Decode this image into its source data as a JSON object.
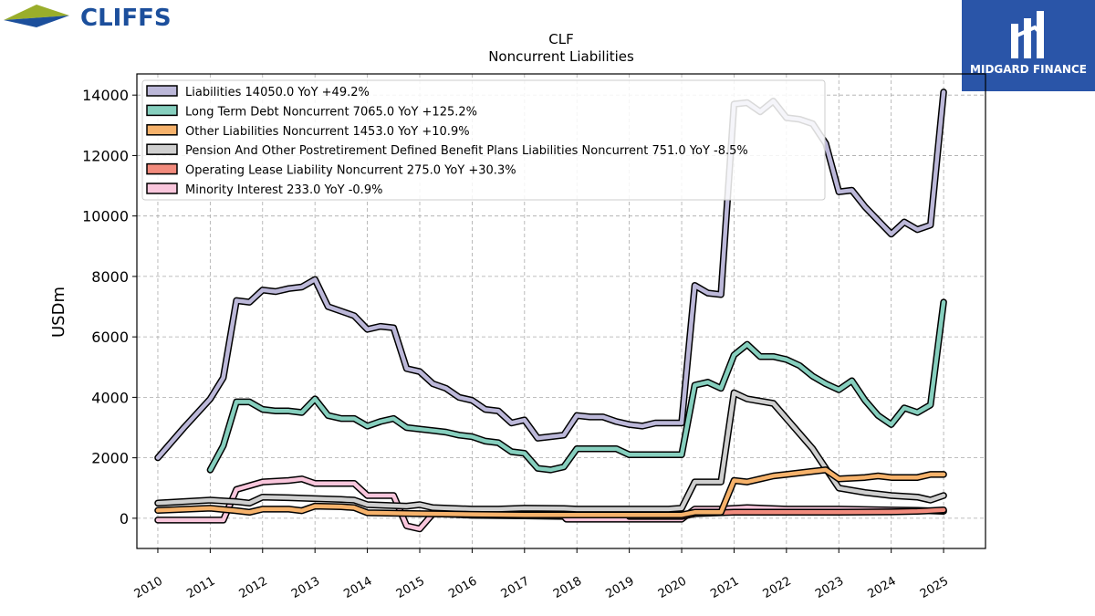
{
  "brand": {
    "left_logo_text": "CLIFFS",
    "right_logo_text": "MIDGARD FINANCE",
    "left_logo_color": "#1c4f9c",
    "right_logo_bg": "#2a55a8"
  },
  "chart_data": {
    "type": "line",
    "title": "CLF",
    "subtitle": "Noncurrent  Liabilities",
    "ylabel": "USDm",
    "xlabel": "",
    "xlim": [
      2009.6,
      2025.8
    ],
    "ylim": [
      -1000,
      14700
    ],
    "yticks": [
      0,
      2000,
      4000,
      6000,
      8000,
      10000,
      12000,
      14000
    ],
    "xticks": [
      "2010",
      "2011",
      "2012",
      "2013",
      "2014",
      "2015",
      "2016",
      "2017",
      "2018",
      "2019",
      "2020",
      "2021",
      "2022",
      "2023",
      "2024",
      "2025"
    ],
    "grid": true,
    "legend_position": "top-left",
    "series": [
      {
        "name": "Liabilities",
        "legend": "Liabilities  14050.0 YoY +49.2%",
        "color": "#bcb8d9",
        "points": [
          [
            2010.0,
            2000
          ],
          [
            2010.5,
            3000
          ],
          [
            2011.0,
            3950
          ],
          [
            2011.25,
            4650
          ],
          [
            2011.5,
            7200
          ],
          [
            2011.75,
            7150
          ],
          [
            2012.0,
            7550
          ],
          [
            2012.25,
            7500
          ],
          [
            2012.5,
            7600
          ],
          [
            2012.75,
            7650
          ],
          [
            2013.0,
            7900
          ],
          [
            2013.25,
            7000
          ],
          [
            2013.5,
            6850
          ],
          [
            2013.75,
            6700
          ],
          [
            2014.0,
            6250
          ],
          [
            2014.25,
            6350
          ],
          [
            2014.5,
            6300
          ],
          [
            2014.75,
            4950
          ],
          [
            2015.0,
            4850
          ],
          [
            2015.25,
            4450
          ],
          [
            2015.5,
            4300
          ],
          [
            2015.75,
            4000
          ],
          [
            2016.0,
            3900
          ],
          [
            2016.25,
            3600
          ],
          [
            2016.5,
            3550
          ],
          [
            2016.75,
            3150
          ],
          [
            2017.0,
            3250
          ],
          [
            2017.25,
            2650
          ],
          [
            2017.5,
            2700
          ],
          [
            2017.75,
            2750
          ],
          [
            2018.0,
            3400
          ],
          [
            2018.25,
            3350
          ],
          [
            2018.5,
            3350
          ],
          [
            2018.75,
            3200
          ],
          [
            2019.0,
            3100
          ],
          [
            2019.25,
            3050
          ],
          [
            2019.5,
            3150
          ],
          [
            2019.75,
            3150
          ],
          [
            2020.0,
            3150
          ],
          [
            2020.25,
            7700
          ],
          [
            2020.5,
            7450
          ],
          [
            2020.75,
            7400
          ],
          [
            2021.0,
            13700
          ],
          [
            2021.25,
            13750
          ],
          [
            2021.5,
            13450
          ],
          [
            2021.75,
            13800
          ],
          [
            2022.0,
            13250
          ],
          [
            2022.25,
            13200
          ],
          [
            2022.5,
            13050
          ],
          [
            2022.75,
            12400
          ],
          [
            2023.0,
            10800
          ],
          [
            2023.25,
            10850
          ],
          [
            2023.5,
            10300
          ],
          [
            2023.75,
            9850
          ],
          [
            2024.0,
            9400
          ],
          [
            2024.25,
            9800
          ],
          [
            2024.5,
            9550
          ],
          [
            2024.75,
            9700
          ],
          [
            2025.0,
            14100
          ]
        ]
      },
      {
        "name": "Long Term Debt Noncurrent",
        "legend": "Long Term Debt Noncurrent  7065.0 YoY +125.2%",
        "color": "#86cfbe",
        "points": [
          [
            2011.0,
            1600
          ],
          [
            2011.25,
            2400
          ],
          [
            2011.5,
            3850
          ],
          [
            2011.75,
            3850
          ],
          [
            2012.0,
            3600
          ],
          [
            2012.25,
            3550
          ],
          [
            2012.5,
            3550
          ],
          [
            2012.75,
            3500
          ],
          [
            2013.0,
            3950
          ],
          [
            2013.25,
            3400
          ],
          [
            2013.5,
            3300
          ],
          [
            2013.75,
            3300
          ],
          [
            2014.0,
            3050
          ],
          [
            2014.25,
            3200
          ],
          [
            2014.5,
            3300
          ],
          [
            2014.75,
            3000
          ],
          [
            2015.0,
            2950
          ],
          [
            2015.25,
            2900
          ],
          [
            2015.5,
            2850
          ],
          [
            2015.75,
            2750
          ],
          [
            2016.0,
            2700
          ],
          [
            2016.25,
            2550
          ],
          [
            2016.5,
            2500
          ],
          [
            2016.75,
            2200
          ],
          [
            2017.0,
            2150
          ],
          [
            2017.25,
            1650
          ],
          [
            2017.5,
            1600
          ],
          [
            2017.75,
            1700
          ],
          [
            2018.0,
            2300
          ],
          [
            2018.25,
            2300
          ],
          [
            2018.5,
            2300
          ],
          [
            2018.75,
            2300
          ],
          [
            2019.0,
            2100
          ],
          [
            2019.25,
            2100
          ],
          [
            2019.5,
            2100
          ],
          [
            2019.75,
            2100
          ],
          [
            2020.0,
            2100
          ],
          [
            2020.25,
            4400
          ],
          [
            2020.5,
            4500
          ],
          [
            2020.75,
            4300
          ],
          [
            2021.0,
            5400
          ],
          [
            2021.25,
            5750
          ],
          [
            2021.5,
            5350
          ],
          [
            2021.75,
            5350
          ],
          [
            2022.0,
            5250
          ],
          [
            2022.25,
            5050
          ],
          [
            2022.5,
            4700
          ],
          [
            2022.75,
            4450
          ],
          [
            2023.0,
            4250
          ],
          [
            2023.25,
            4550
          ],
          [
            2023.5,
            3900
          ],
          [
            2023.75,
            3400
          ],
          [
            2024.0,
            3100
          ],
          [
            2024.25,
            3650
          ],
          [
            2024.5,
            3500
          ],
          [
            2024.75,
            3750
          ],
          [
            2025.0,
            7150
          ]
        ]
      },
      {
        "name": "Other Liabilities Noncurrent",
        "legend": "Other Liabilities Noncurrent  1453.0 YoY +10.9%",
        "color": "#f6b26b",
        "points": [
          [
            2010.0,
            260
          ],
          [
            2011.0,
            330
          ],
          [
            2011.5,
            250
          ],
          [
            2011.75,
            200
          ],
          [
            2012.0,
            300
          ],
          [
            2012.5,
            300
          ],
          [
            2012.75,
            250
          ],
          [
            2013.0,
            400
          ],
          [
            2013.5,
            380
          ],
          [
            2013.75,
            350
          ],
          [
            2014.0,
            180
          ],
          [
            2014.75,
            160
          ],
          [
            2015.0,
            150
          ],
          [
            2016.0,
            130
          ],
          [
            2017.0,
            110
          ],
          [
            2017.75,
            110
          ],
          [
            2018.0,
            110
          ],
          [
            2019.0,
            110
          ],
          [
            2020.0,
            110
          ],
          [
            2020.25,
            200
          ],
          [
            2020.75,
            200
          ],
          [
            2021.0,
            1250
          ],
          [
            2021.25,
            1200
          ],
          [
            2021.5,
            1300
          ],
          [
            2021.75,
            1400
          ],
          [
            2022.0,
            1450
          ],
          [
            2022.5,
            1550
          ],
          [
            2022.75,
            1600
          ],
          [
            2023.0,
            1300
          ],
          [
            2023.5,
            1350
          ],
          [
            2023.75,
            1400
          ],
          [
            2024.0,
            1350
          ],
          [
            2024.5,
            1350
          ],
          [
            2024.75,
            1450
          ],
          [
            2025.0,
            1450
          ]
        ]
      },
      {
        "name": "Pension And Other Postretirement Defined Benefit Plans Liabilities Noncurrent",
        "legend": "Pension And Other Postretirement Defined Benefit Plans Liabilities Noncurrent  751.0 YoY -8.5%",
        "color": "#cfcfcf",
        "points": [
          [
            2010.0,
            500
          ],
          [
            2011.0,
            600
          ],
          [
            2011.5,
            550
          ],
          [
            2011.75,
            500
          ],
          [
            2012.0,
            700
          ],
          [
            2012.5,
            680
          ],
          [
            2013.0,
            650
          ],
          [
            2013.5,
            620
          ],
          [
            2013.75,
            600
          ],
          [
            2014.0,
            450
          ],
          [
            2014.75,
            400
          ],
          [
            2015.0,
            450
          ],
          [
            2015.25,
            350
          ],
          [
            2016.0,
            300
          ],
          [
            2016.5,
            300
          ],
          [
            2017.0,
            330
          ],
          [
            2017.75,
            320
          ],
          [
            2018.0,
            300
          ],
          [
            2019.0,
            300
          ],
          [
            2019.75,
            300
          ],
          [
            2020.0,
            330
          ],
          [
            2020.25,
            1200
          ],
          [
            2020.75,
            1200
          ],
          [
            2021.0,
            4150
          ],
          [
            2021.25,
            3950
          ],
          [
            2021.75,
            3800
          ],
          [
            2022.0,
            3300
          ],
          [
            2022.5,
            2300
          ],
          [
            2023.0,
            1000
          ],
          [
            2023.5,
            850
          ],
          [
            2024.0,
            750
          ],
          [
            2024.5,
            700
          ],
          [
            2024.75,
            600
          ],
          [
            2025.0,
            750
          ]
        ]
      },
      {
        "name": "Operating Lease Liability Noncurrent",
        "legend": "Operating Lease Liability Noncurrent  275.0 YoY +30.3%",
        "color": "#f28b7d",
        "points": [
          [
            2019.0,
            60
          ],
          [
            2019.5,
            60
          ],
          [
            2020.0,
            60
          ],
          [
            2020.25,
            150
          ],
          [
            2021.0,
            200
          ],
          [
            2022.0,
            200
          ],
          [
            2023.0,
            200
          ],
          [
            2024.0,
            210
          ],
          [
            2024.5,
            230
          ],
          [
            2025.0,
            275
          ]
        ]
      },
      {
        "name": "Minority Interest",
        "legend": "Minority Interest  233.0 YoY -0.9%",
        "color": "#f9c6dc",
        "points": [
          [
            2010.0,
            -60
          ],
          [
            2011.0,
            -60
          ],
          [
            2011.25,
            -60
          ],
          [
            2011.5,
            950
          ],
          [
            2012.0,
            1200
          ],
          [
            2012.5,
            1250
          ],
          [
            2012.75,
            1300
          ],
          [
            2013.0,
            1150
          ],
          [
            2013.5,
            1150
          ],
          [
            2013.75,
            1150
          ],
          [
            2014.0,
            750
          ],
          [
            2014.5,
            750
          ],
          [
            2014.75,
            -250
          ],
          [
            2015.0,
            -350
          ],
          [
            2015.25,
            150
          ],
          [
            2015.75,
            120
          ],
          [
            2016.0,
            100
          ],
          [
            2017.0,
            80
          ],
          [
            2017.75,
            60
          ],
          [
            2017.8,
            -30
          ],
          [
            2018.0,
            -30
          ],
          [
            2019.0,
            -30
          ],
          [
            2020.0,
            -30
          ],
          [
            2020.25,
            300
          ],
          [
            2020.75,
            300
          ],
          [
            2021.25,
            350
          ],
          [
            2022.0,
            300
          ],
          [
            2023.0,
            300
          ],
          [
            2024.0,
            270
          ],
          [
            2024.5,
            260
          ],
          [
            2025.0,
            233
          ]
        ]
      }
    ]
  }
}
